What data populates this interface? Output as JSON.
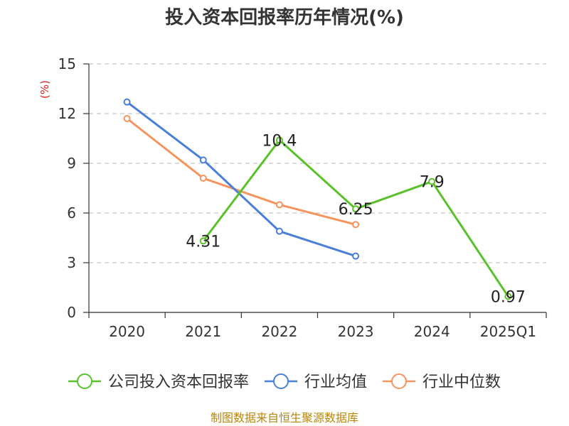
{
  "title": "投入资本回报率历年情况(%)",
  "source": "制图数据来自恒生聚源数据库",
  "chart_data": {
    "type": "line",
    "title": "投入资本回报率历年情况(%)",
    "ylabel": "(%)",
    "xlabel": "",
    "categories": [
      "2020",
      "2021",
      "2022",
      "2023",
      "2024",
      "2025Q1"
    ],
    "ylim": [
      0,
      15
    ],
    "yticks": [
      0,
      3,
      6,
      9,
      12,
      15
    ],
    "grid": true,
    "legend_position": "bottom",
    "series": [
      {
        "name": "公司投入资本回报率",
        "color": "#5ac12a",
        "values": [
          null,
          4.31,
          10.4,
          6.25,
          7.9,
          0.97
        ],
        "labels": [
          null,
          "4.31",
          "10.4",
          "6.25",
          "7.9",
          "0.97"
        ]
      },
      {
        "name": "行业均值",
        "color": "#4a7fd8",
        "values": [
          12.7,
          9.2,
          4.9,
          3.4,
          null,
          null
        ],
        "labels": null
      },
      {
        "name": "行业中位数",
        "color": "#f5955d",
        "values": [
          11.7,
          8.1,
          6.5,
          5.3,
          null,
          null
        ],
        "labels": null
      }
    ]
  }
}
